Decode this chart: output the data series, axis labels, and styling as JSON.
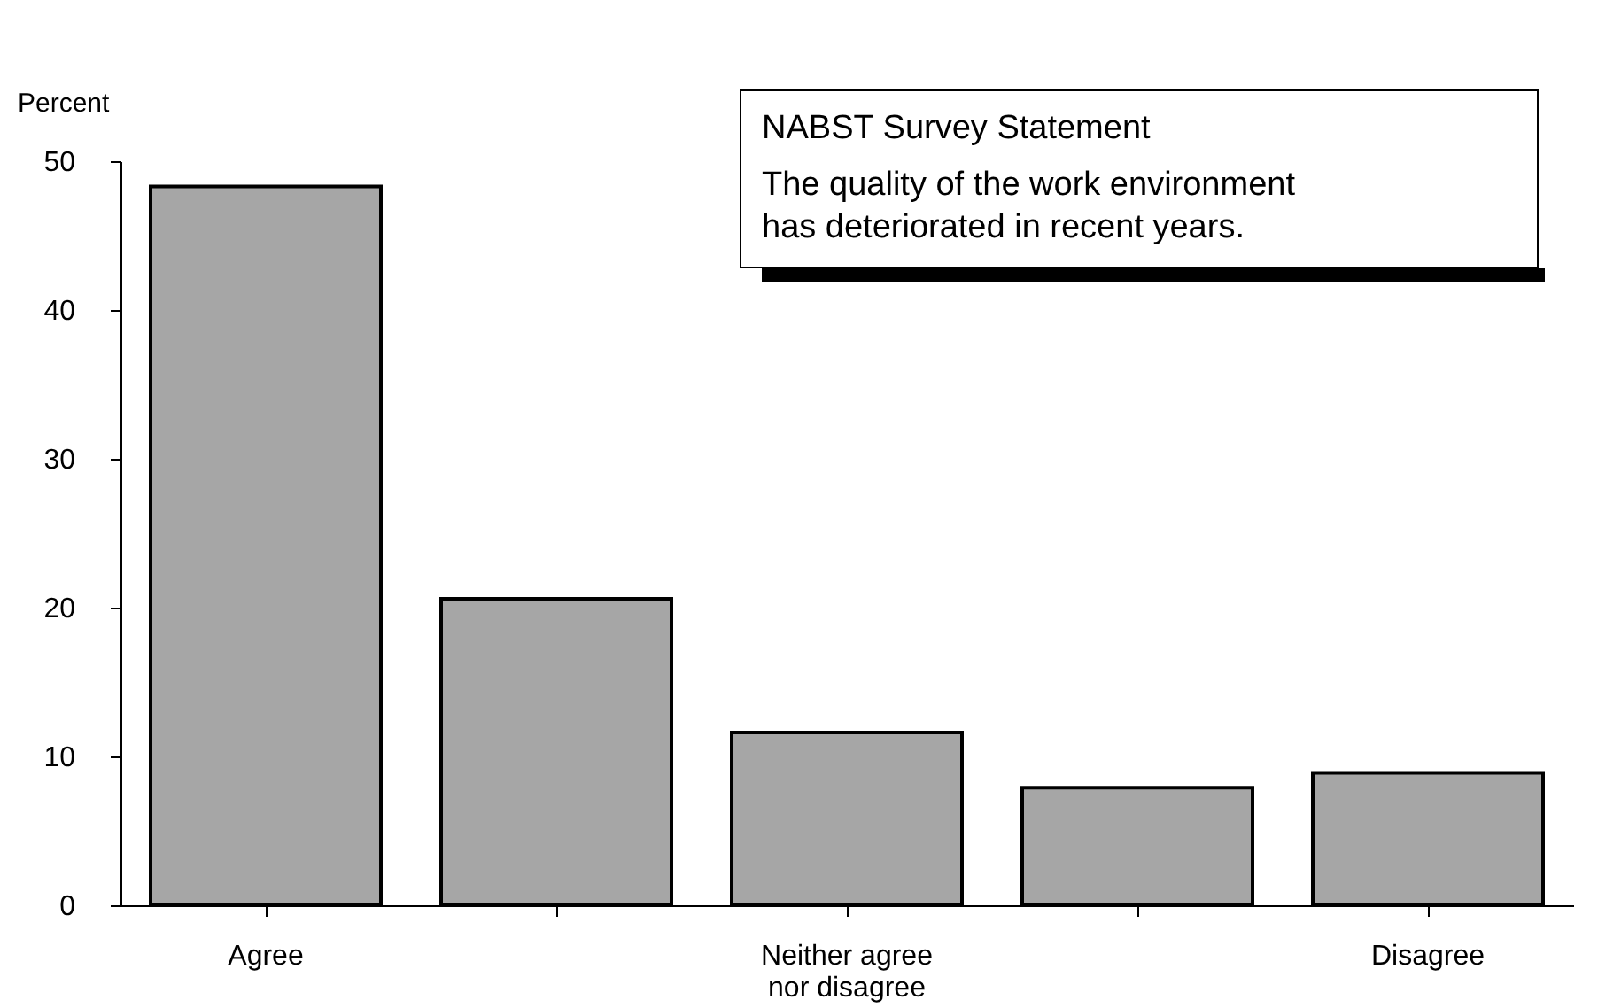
{
  "chart_data": {
    "type": "bar",
    "title": "NABST Survey Statement",
    "subtitle": "The quality of the work environment\nhas deteriorated in recent years.",
    "ylabel": "Percent",
    "categories": [
      "Agree",
      null,
      "Neither agree\nnor disagree",
      null,
      "Disagree"
    ],
    "values": [
      48.3,
      20.6,
      11.6,
      7.9,
      8.9
    ],
    "color": "#a6a6a6",
    "ylim": [
      0,
      50
    ],
    "yticks": [
      0,
      10,
      20,
      30,
      40,
      50
    ],
    "grid": false
  }
}
